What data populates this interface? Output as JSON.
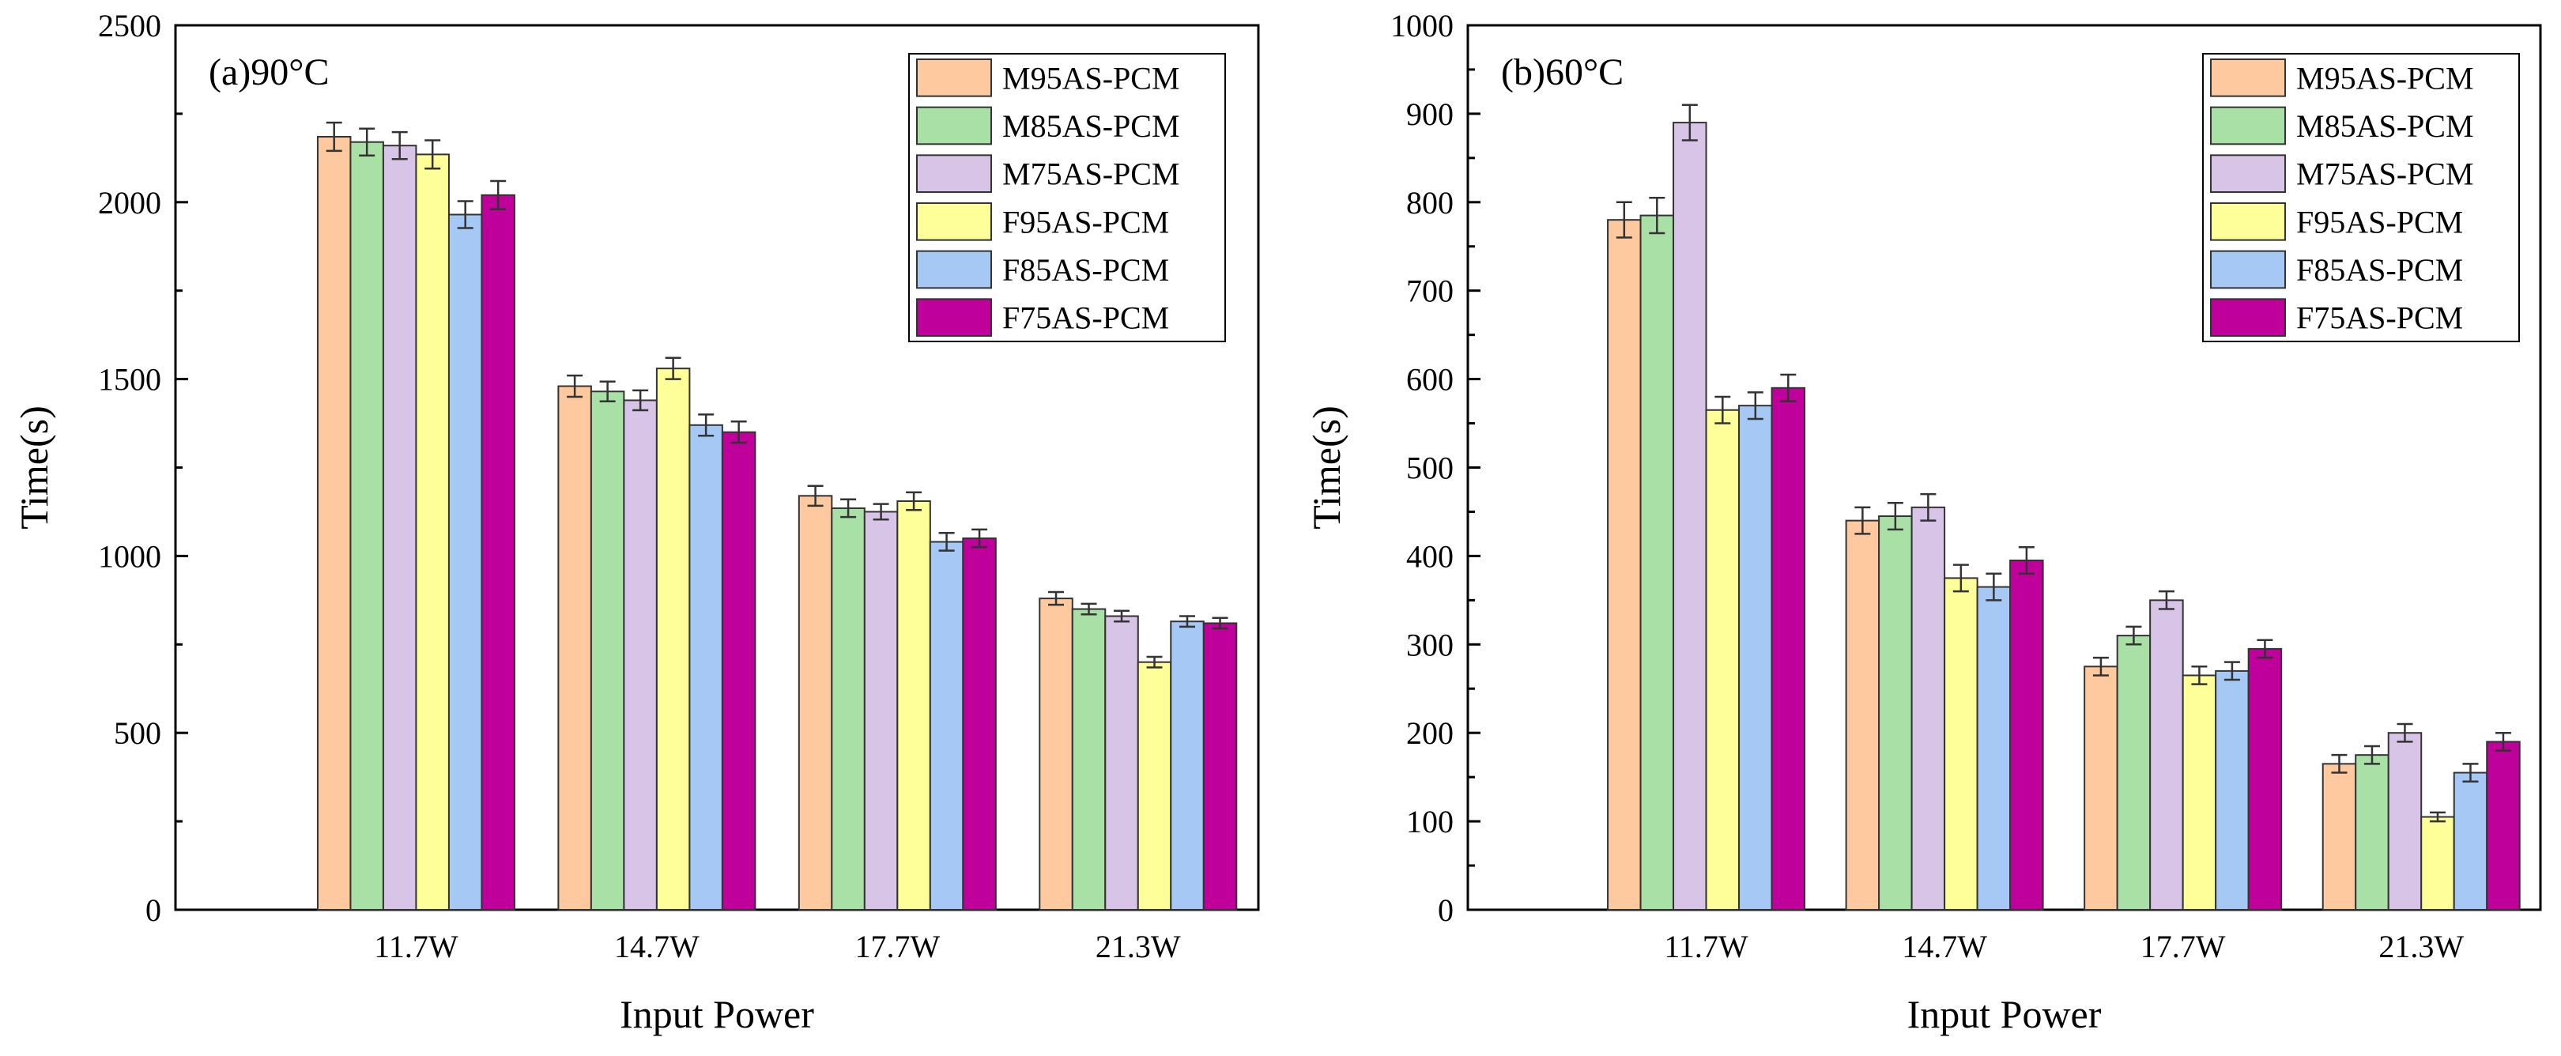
{
  "chart_data": [
    {
      "type": "bar",
      "panel": "a",
      "title": "(a)90°C",
      "xlabel": "Input Power",
      "ylabel": "Time(s)",
      "ylim": [
        0,
        2500
      ],
      "yticks": [
        0,
        500,
        1000,
        1500,
        2000,
        2500
      ],
      "categories": [
        "11.7W",
        "14.7W",
        "17.7W",
        "21.3W"
      ],
      "legend_position": "top-right",
      "series": [
        {
          "name": "M95AS-PCM",
          "color": "#ffc9a0",
          "values": [
            2185,
            1480,
            1170,
            880
          ],
          "errors": [
            40,
            30,
            28,
            18
          ]
        },
        {
          "name": "M85AS-PCM",
          "color": "#a8e0a6",
          "values": [
            2170,
            1465,
            1135,
            850
          ],
          "errors": [
            38,
            28,
            25,
            15
          ]
        },
        {
          "name": "M75AS-PCM",
          "color": "#d8c4e6",
          "values": [
            2160,
            1440,
            1125,
            830
          ],
          "errors": [
            38,
            28,
            22,
            15
          ]
        },
        {
          "name": "F95AS-PCM",
          "color": "#ffff9a",
          "values": [
            2135,
            1530,
            1155,
            700
          ],
          "errors": [
            40,
            30,
            25,
            15
          ]
        },
        {
          "name": "F85AS-PCM",
          "color": "#a6c8f5",
          "values": [
            1965,
            1370,
            1040,
            815
          ],
          "errors": [
            38,
            30,
            25,
            15
          ]
        },
        {
          "name": "F75AS-PCM",
          "color": "#c0009a",
          "values": [
            2020,
            1350,
            1050,
            810
          ],
          "errors": [
            40,
            30,
            25,
            15
          ]
        }
      ]
    },
    {
      "type": "bar",
      "panel": "b",
      "title": "(b)60°C",
      "xlabel": "Input Power",
      "ylabel": "Time(s)",
      "ylim": [
        0,
        1000
      ],
      "yticks": [
        0,
        100,
        200,
        300,
        400,
        500,
        600,
        700,
        800,
        900,
        1000
      ],
      "categories": [
        "11.7W",
        "14.7W",
        "17.7W",
        "21.3W"
      ],
      "legend_position": "top-right",
      "series": [
        {
          "name": "M95AS-PCM",
          "color": "#ffc9a0",
          "values": [
            780,
            440,
            275,
            165
          ],
          "errors": [
            20,
            15,
            10,
            10
          ]
        },
        {
          "name": "M85AS-PCM",
          "color": "#a8e0a6",
          "values": [
            785,
            445,
            310,
            175
          ],
          "errors": [
            20,
            15,
            10,
            10
          ]
        },
        {
          "name": "M75AS-PCM",
          "color": "#d8c4e6",
          "values": [
            890,
            455,
            350,
            200
          ],
          "errors": [
            20,
            15,
            10,
            10
          ]
        },
        {
          "name": "F95AS-PCM",
          "color": "#ffff9a",
          "values": [
            565,
            375,
            265,
            105
          ],
          "errors": [
            15,
            15,
            10,
            5
          ]
        },
        {
          "name": "F85AS-PCM",
          "color": "#a6c8f5",
          "values": [
            570,
            365,
            270,
            155
          ],
          "errors": [
            15,
            15,
            10,
            10
          ]
        },
        {
          "name": "F75AS-PCM",
          "color": "#c0009a",
          "values": [
            590,
            395,
            295,
            190
          ],
          "errors": [
            15,
            15,
            10,
            10
          ]
        }
      ]
    }
  ]
}
